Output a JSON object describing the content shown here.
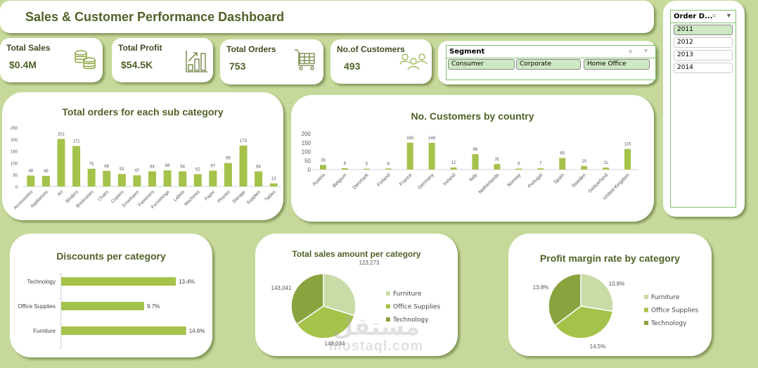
{
  "header": {
    "title": "Sales & Customer Performance Dashboard"
  },
  "kpis": [
    {
      "label": "Total Sales",
      "value": "$0.4M",
      "icon": "coins-icon"
    },
    {
      "label": "Total Profit",
      "value": "$54.5K",
      "icon": "growth-chart-icon"
    },
    {
      "label": "Total Orders",
      "value": "753",
      "icon": "shopping-cart-icon"
    },
    {
      "label": "No.of Customers",
      "value": "493",
      "icon": "people-icon"
    }
  ],
  "segment_slicer": {
    "title": "Segment",
    "items": [
      {
        "label": "Consumer",
        "selected": true
      },
      {
        "label": "Corporate",
        "selected": true
      },
      {
        "label": "Home Office",
        "selected": true
      }
    ]
  },
  "date_slicer": {
    "title": "Order D...",
    "items": [
      {
        "label": "2011",
        "selected": true
      },
      {
        "label": "2012",
        "selected": false
      },
      {
        "label": "2013",
        "selected": false
      },
      {
        "label": "2014",
        "selected": false
      }
    ]
  },
  "colors": {
    "background": "#c6d99a",
    "title_text": "#4f6228",
    "bar": "#a5c24a",
    "pie_furniture": "#c9dba7",
    "pie_office_supplies": "#a5c24a",
    "pie_technology": "#8aa33f"
  },
  "watermark": {
    "arabic": "مستقل",
    "latin": "mostaql.com"
  },
  "chart_data": [
    {
      "id": "orders_by_subcategory",
      "type": "bar",
      "title": "Total orders for each sub category",
      "categories": [
        "Accessories",
        "Appliances",
        "Art",
        "Binders",
        "Bookcases",
        "Chairs",
        "Copiers",
        "Envelopes",
        "Fasteners",
        "Furnishings",
        "Labels",
        "Machines",
        "Paper",
        "Phones",
        "Storage",
        "Supplies",
        "Tables"
      ],
      "values": [
        46,
        45,
        201,
        171,
        75,
        66,
        53,
        47,
        64,
        68,
        64,
        52,
        67,
        99,
        173,
        64,
        13
      ],
      "yticks": [
        0,
        50,
        100,
        150,
        200,
        250
      ],
      "ylim": [
        0,
        250
      ],
      "xlabel": "",
      "ylabel": "",
      "grid": false,
      "legend": "none"
    },
    {
      "id": "customers_by_country",
      "type": "bar",
      "title": "No. Customers by country",
      "categories": [
        "Austria",
        "Belgium",
        "Denmark",
        "Finland",
        "France",
        "Germany",
        "Ireland",
        "Italy",
        "Netherlands",
        "Norway",
        "Portugal",
        "Spain",
        "Sweden",
        "Switzerland",
        "United Kingdom"
      ],
      "values": [
        26,
        8,
        5,
        6,
        150,
        149,
        12,
        86,
        31,
        6,
        7,
        65,
        20,
        11,
        115
      ],
      "yticks": [
        0,
        50,
        100,
        150,
        200
      ],
      "ylim": [
        0,
        200
      ],
      "xlabel": "",
      "ylabel": "",
      "grid": false,
      "legend": "none"
    },
    {
      "id": "discounts_per_category",
      "type": "bar",
      "orientation": "horizontal",
      "title": "Discounts per category",
      "categories": [
        "Technology",
        "Office Supplies",
        "Furniture"
      ],
      "values": [
        13.4,
        9.7,
        14.6
      ],
      "labels": [
        "13.4%",
        "9.7%",
        "14.6%"
      ],
      "unit": "%"
    },
    {
      "id": "sales_per_category",
      "type": "pie",
      "title": "Total sales amount per category",
      "categories": [
        "Furniture",
        "Office Supplies",
        "Technology"
      ],
      "values": [
        123273,
        148034,
        143041
      ],
      "labels": [
        "123,273",
        "148,034",
        "143,041"
      ],
      "legend": "right"
    },
    {
      "id": "profit_margin_by_category",
      "type": "pie",
      "title": "Profit margin rate by category",
      "categories": [
        "Furniture",
        "Office Supplies",
        "Technology"
      ],
      "values": [
        10.8,
        14.5,
        13.8
      ],
      "labels": [
        "10.8%",
        "14.5%",
        "13.8%"
      ],
      "legend": "right"
    }
  ]
}
